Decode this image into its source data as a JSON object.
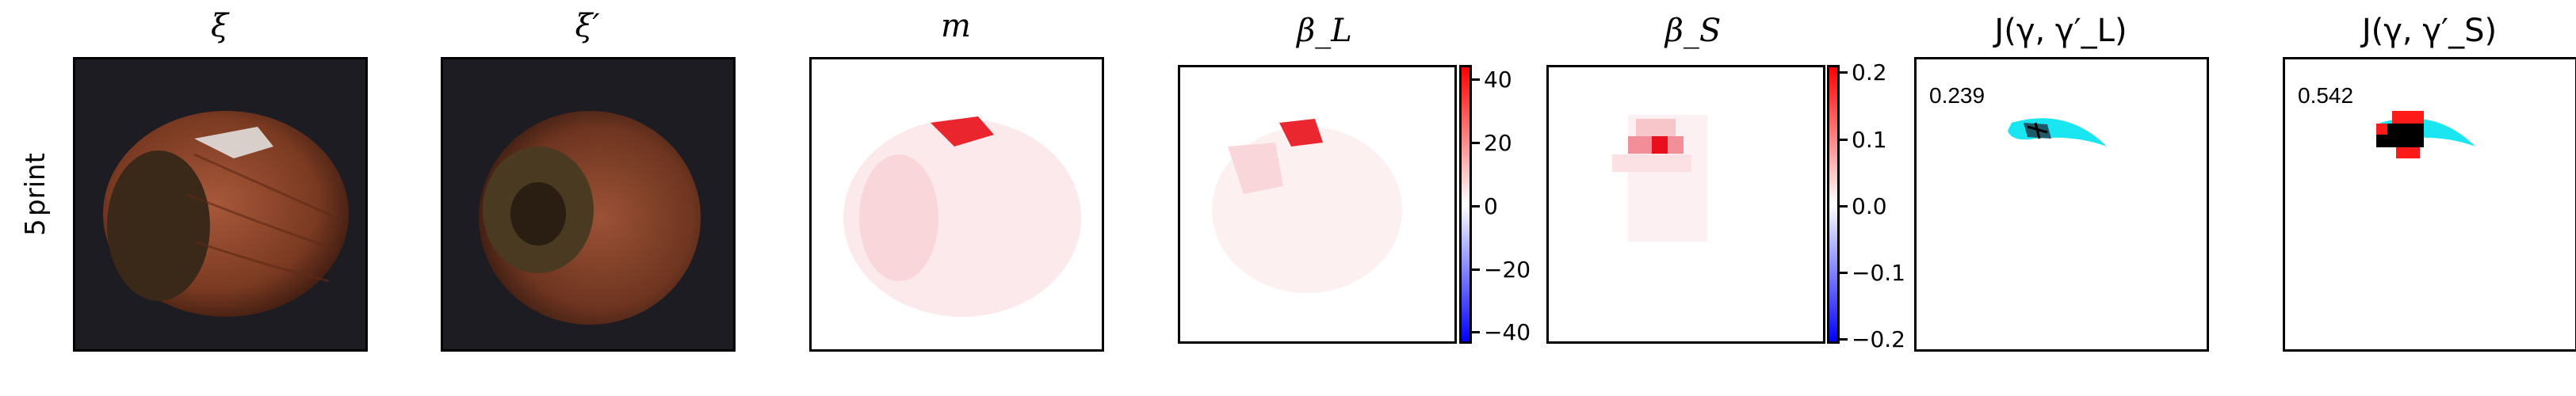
{
  "row_label": {
    "line1": "print",
    "line2": "5"
  },
  "titles": {
    "xi": "ξ",
    "xi_prime": "ξ′",
    "m": "m",
    "beta_l": "β_L",
    "beta_s": "β_S",
    "j_l": "J(γ, γ′_L)",
    "j_s": "J(γ, γ′_S)"
  },
  "colorbar_l": {
    "ticks": [
      "40",
      "20",
      "0",
      "−20",
      "−40"
    ]
  },
  "colorbar_s": {
    "ticks": [
      "0.2",
      "0.1",
      "0.0",
      "−0.1",
      "−0.2"
    ]
  },
  "scores": {
    "j_l": "0.239",
    "j_s": "0.542"
  },
  "colors": {
    "overlay_cyan": "#19e6f0",
    "overlay_red": "#ff1a1a",
    "heat_red": "#e8101a"
  }
}
